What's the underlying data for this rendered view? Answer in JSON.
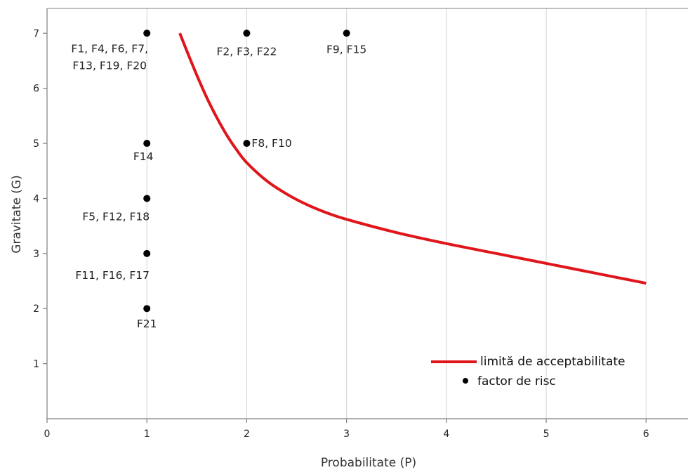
{
  "chart_data": {
    "type": "scatter",
    "xlabel": "Probabilitate (P)",
    "ylabel": "Gravitate (G)",
    "xlim": [
      0,
      6.42
    ],
    "ylim": [
      0,
      7.45
    ],
    "xticks": [
      0,
      1,
      2,
      3,
      4,
      5,
      6
    ],
    "yticks": [
      1,
      2,
      3,
      4,
      5,
      6,
      7
    ],
    "grid": "vertical",
    "legend_position": "bottom-right",
    "colors": {
      "curve": "#e0151b",
      "points": "#000000",
      "grid": "#d4d4d4",
      "frame": "#7f7f7f"
    },
    "series": [
      {
        "name": "limită de acceptabilitate",
        "kind": "line",
        "x": [
          1.33,
          1.4,
          1.5,
          1.6,
          1.7,
          1.8,
          1.9,
          2.0,
          2.2,
          2.4,
          2.6,
          2.8,
          3.0,
          3.5,
          4.0,
          4.5,
          5.0,
          5.5,
          6.0
        ],
        "y": [
          7.0,
          6.68,
          6.24,
          5.83,
          5.47,
          5.15,
          4.88,
          4.65,
          4.32,
          4.08,
          3.89,
          3.74,
          3.62,
          3.38,
          3.18,
          3.0,
          2.82,
          2.64,
          2.46
        ]
      },
      {
        "name": "factor de risc",
        "kind": "points",
        "points": [
          {
            "x": 1,
            "y": 7,
            "label": "F1, F4, F6, F7,\nF13, F19, F20"
          },
          {
            "x": 2,
            "y": 7,
            "label": "F2, F3, F22"
          },
          {
            "x": 3,
            "y": 7,
            "label": "F9, F15"
          },
          {
            "x": 1,
            "y": 5,
            "label": "F14"
          },
          {
            "x": 2,
            "y": 5,
            "label": "F8, F10"
          },
          {
            "x": 1,
            "y": 4,
            "label": "F5, F12, F18"
          },
          {
            "x": 1,
            "y": 3,
            "label": "F11, F16, F17"
          },
          {
            "x": 1,
            "y": 2,
            "label": "F21"
          }
        ]
      }
    ]
  }
}
